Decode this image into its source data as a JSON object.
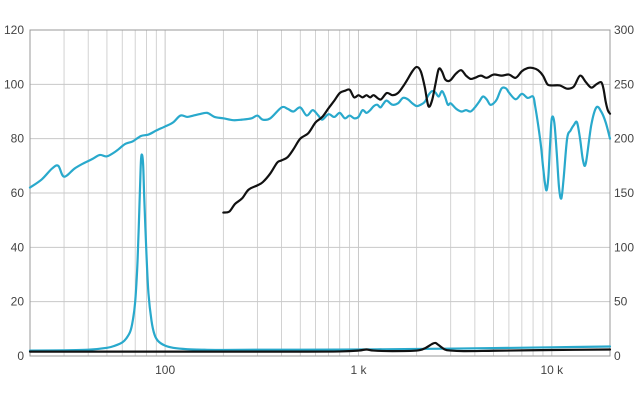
{
  "chart_data": {
    "type": "line",
    "x_scale": "log",
    "xlim": [
      20,
      20000
    ],
    "ylim_left": [
      0,
      120
    ],
    "ylim_right": [
      0,
      300
    ],
    "grid": true,
    "left_ticks": [
      {
        "value": 0,
        "label": "0"
      },
      {
        "value": 20,
        "label": "20"
      },
      {
        "value": 40,
        "label": "40"
      },
      {
        "value": 60,
        "label": "60"
      },
      {
        "value": 80,
        "label": "80"
      },
      {
        "value": 100,
        "label": "100"
      },
      {
        "value": 120,
        "label": "120"
      }
    ],
    "right_ticks": [
      {
        "value": 0,
        "label": "0"
      },
      {
        "value": 50,
        "label": "50"
      },
      {
        "value": 100,
        "label": "100"
      },
      {
        "value": 150,
        "label": "150"
      },
      {
        "value": 200,
        "label": "200"
      },
      {
        "value": 250,
        "label": "250"
      },
      {
        "value": 300,
        "label": "300"
      }
    ],
    "x_ticks": [
      {
        "value": 100,
        "label": "100"
      },
      {
        "value": 1000,
        "label": "1 k"
      },
      {
        "value": 10000,
        "label": "10 k"
      }
    ],
    "colors": {
      "blue": "#29a9cc",
      "black": "#111111",
      "grid": "#c8c8c8",
      "frame": "#999999"
    },
    "series": [
      {
        "axis": "left",
        "color": "#29a9cc",
        "x": [
          20,
          23,
          26,
          28,
          30,
          34,
          38,
          42,
          46,
          50,
          56,
          62,
          68,
          75,
          82,
          90,
          100,
          110,
          120,
          130,
          140,
          150,
          165,
          180,
          200,
          225,
          250,
          280,
          300,
          320,
          350,
          400,
          430,
          460,
          500,
          540,
          580,
          620,
          650,
          700,
          750,
          800,
          850,
          900,
          950,
          1000,
          1050,
          1100,
          1150,
          1200,
          1250,
          1300,
          1350,
          1400,
          1500,
          1600,
          1700,
          1800,
          1900,
          2000,
          2100,
          2200,
          2300,
          2400,
          2500,
          2600,
          2700,
          2800,
          2900,
          3000,
          3200,
          3400,
          3600,
          3800,
          4000,
          4200,
          4400,
          4600,
          4800,
          5000,
          5200,
          5500,
          5800,
          6000,
          6500,
          7000,
          7500,
          8000,
          8200,
          8500,
          8800,
          9000,
          9200,
          9400,
          9600,
          9800,
          10000,
          10300,
          10600,
          10900,
          11200,
          11500,
          12000,
          12500,
          13000,
          13500,
          14000,
          14500,
          15000,
          16000,
          17000,
          18000,
          19000,
          20000
        ],
        "y": [
          62,
          65,
          69,
          70,
          66,
          69,
          71,
          72.5,
          74,
          73.5,
          75.5,
          78,
          79,
          81,
          81.5,
          83,
          84.5,
          86,
          88.5,
          88,
          88.5,
          89,
          89.5,
          88,
          87.5,
          86.8,
          87,
          87.5,
          88.5,
          87,
          87.5,
          91.5,
          91,
          90,
          91.5,
          88.5,
          90.5,
          88.5,
          87,
          89,
          88,
          89.5,
          87.5,
          88.5,
          87.5,
          88,
          90.5,
          89.5,
          90.5,
          92,
          92.5,
          91.5,
          93,
          94,
          92.5,
          93,
          95,
          94.5,
          93,
          92,
          92.5,
          93.5,
          96,
          97.5,
          97,
          95.5,
          97.5,
          95.5,
          92.5,
          93,
          91,
          90,
          90.5,
          90,
          91.5,
          93.5,
          95.5,
          94.5,
          92.5,
          93,
          94.5,
          98.5,
          98.5,
          97,
          94.5,
          96.5,
          95,
          95.5,
          92,
          85,
          77,
          70,
          64,
          61,
          66,
          78,
          87.5,
          86,
          75,
          62,
          58,
          65,
          80,
          83,
          85,
          86,
          80,
          72,
          71,
          85,
          91.5,
          90,
          86,
          80
        ]
      },
      {
        "axis": "left",
        "color": "#29a9cc",
        "x": [
          20,
          30,
          40,
          50,
          55,
          60,
          63,
          66,
          68,
          70,
          72,
          74,
          75,
          76,
          77,
          78,
          80,
          82,
          85,
          88,
          92,
          100,
          110,
          130,
          160,
          200,
          300,
          500,
          1000,
          2000,
          5000,
          10000,
          20000
        ],
        "y": [
          2,
          2.1,
          2.3,
          3,
          3.8,
          5,
          6.5,
          9,
          13,
          20,
          35,
          60,
          72,
          74,
          70,
          58,
          38,
          23,
          13,
          8,
          5.5,
          3.8,
          3,
          2.5,
          2.3,
          2.2,
          2.3,
          2.3,
          2.4,
          2.6,
          2.9,
          3.2,
          3.5
        ]
      },
      {
        "axis": "right",
        "color": "#111111",
        "x": [
          200,
          215,
          230,
          250,
          270,
          300,
          320,
          350,
          380,
          400,
          430,
          460,
          500,
          550,
          600,
          650,
          700,
          750,
          800,
          850,
          900,
          950,
          1000,
          1050,
          1100,
          1150,
          1200,
          1300,
          1400,
          1500,
          1600,
          1700,
          1800,
          1900,
          2000,
          2100,
          2200,
          2300,
          2400,
          2500,
          2600,
          2700,
          2800,
          2900,
          3000,
          3200,
          3400,
          3600,
          3800,
          4000,
          4300,
          4600,
          5000,
          5500,
          6000,
          6500,
          7000,
          7500,
          8000,
          8500,
          9000,
          9500,
          10000,
          11000,
          12000,
          13000,
          14000,
          15000,
          16000,
          17000,
          18000,
          18500,
          19000,
          19500,
          20000
        ],
        "y": [
          132,
          133,
          140,
          145,
          153,
          157,
          160,
          168,
          178,
          180,
          183,
          190,
          200,
          205,
          215,
          220,
          228,
          235,
          242,
          244,
          245,
          238,
          240,
          238,
          240,
          238,
          240,
          236,
          242,
          240,
          242,
          248,
          255,
          262,
          266,
          262,
          248,
          230,
          235,
          250,
          264,
          262,
          255,
          253,
          254,
          260,
          263,
          258,
          255,
          256,
          258,
          256,
          259,
          258,
          259,
          256,
          262,
          265,
          265,
          263,
          258,
          250,
          249,
          249,
          246,
          248,
          258,
          252,
          247,
          250,
          252,
          246,
          234,
          226,
          223
        ]
      },
      {
        "axis": "right",
        "color": "#111111",
        "x": [
          20,
          100,
          500,
          800,
          1000,
          1100,
          1200,
          1500,
          2000,
          2200,
          2400,
          2500,
          2600,
          2800,
          3000,
          3500,
          5000,
          10000,
          20000
        ],
        "y": [
          4,
          4,
          4,
          4.2,
          5,
          6,
          5,
          4.5,
          5,
          7,
          11,
          12,
          10,
          6,
          5,
          4.5,
          4.8,
          5.5,
          6
        ]
      }
    ]
  }
}
